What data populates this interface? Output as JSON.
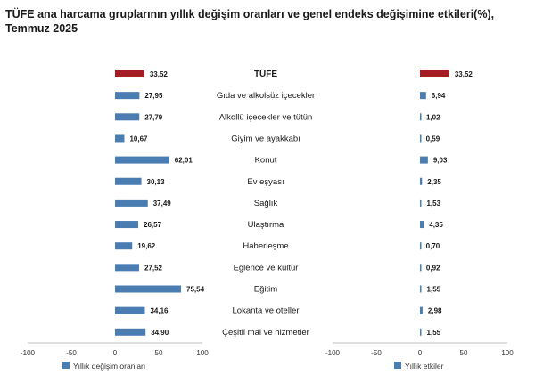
{
  "title": "TÜFE ana harcama gruplarının yıllık değişim oranları ve genel endeks değişimine etkileri(%), Temmuz 2025",
  "colors": {
    "highlight": "#a31d23",
    "bar": "#4a7db1",
    "axis": "#bfbfbf"
  },
  "chart_data": [
    {
      "type": "bar",
      "orientation": "horizontal",
      "categories": [
        "TÜFE",
        "Gıda ve alkolsüz içecekler",
        "Alkollü içecekler ve tütün",
        "Giyim ve ayakkabı",
        "Konut",
        "Ev eşyası",
        "Sağlık",
        "Ulaştırma",
        "Haberleşme",
        "Eğlence ve kültür",
        "Eğitim",
        "Lokanta ve oteller",
        "Çeşitli mal ve hizmetler"
      ],
      "series": [
        {
          "name": "Yıllık değişim oranları",
          "values": [
            33.52,
            27.95,
            27.79,
            10.67,
            62.01,
            30.13,
            37.49,
            26.57,
            19.62,
            27.52,
            75.54,
            34.16,
            34.9
          ],
          "labels": [
            "33,52",
            "27,95",
            "27,79",
            "10,67",
            "62,01",
            "30,13",
            "37,49",
            "26,57",
            "19,62",
            "27,52",
            "75,54",
            "34,16",
            "34,90"
          ]
        }
      ],
      "xlim": [
        -100,
        100
      ],
      "xticks": [
        "-100",
        "-50",
        "0",
        "50",
        "100"
      ],
      "legend_position": "bottom-left"
    },
    {
      "type": "bar",
      "orientation": "horizontal",
      "categories": [
        "TÜFE",
        "Gıda ve alkolsüz içecekler",
        "Alkollü içecekler ve tütün",
        "Giyim ve ayakkabı",
        "Konut",
        "Ev eşyası",
        "Sağlık",
        "Ulaştırma",
        "Haberleşme",
        "Eğlence ve kültür",
        "Eğitim",
        "Lokanta ve oteller",
        "Çeşitli mal ve hizmetler"
      ],
      "series": [
        {
          "name": "Yıllık etkiler",
          "values": [
            33.52,
            6.94,
            1.02,
            0.59,
            9.03,
            2.35,
            1.53,
            4.35,
            0.7,
            0.92,
            1.55,
            2.98,
            1.55
          ],
          "labels": [
            "33,52",
            "6,94",
            "1,02",
            "0,59",
            "9,03",
            "2,35",
            "1,53",
            "4,35",
            "0,70",
            "0,92",
            "1,55",
            "2,98",
            "1,55"
          ]
        }
      ],
      "xlim": [
        -100,
        100
      ],
      "xticks": [
        "-100",
        "-50",
        "0",
        "50",
        "100"
      ],
      "legend_position": "bottom-left"
    }
  ]
}
